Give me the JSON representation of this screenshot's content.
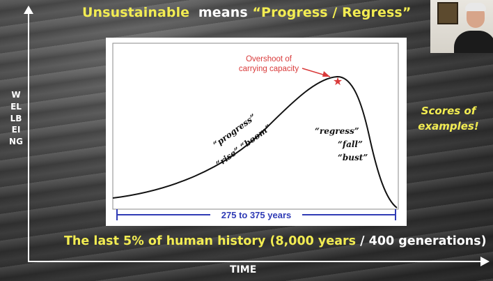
{
  "slide": {
    "title_part1": "Unsustainable",
    "title_part2": "means",
    "title_part3": "“Progress / Regress”",
    "y_axis_label": "WELLBEING",
    "x_axis_label": "TIME",
    "side_note": "Scores of examples!",
    "bottom_caption_part1": "The last 5% of human history (8,000 years",
    "bottom_caption_part2": "/ 400 generations)"
  },
  "chart": {
    "annotation": "Overshoot of carrying capacity",
    "annotation_line1": "Overshoot of",
    "annotation_line2": "carrying capacity",
    "rise_label_1": "“progress”",
    "rise_label_2": "“rise” “boom”",
    "fall_label_1": "“regress”",
    "fall_label_2": "“fall”",
    "fall_label_3": "“bust”",
    "span_label": "275 to 375 years",
    "colors": {
      "curve": "#111111",
      "annotation": "#d93a3a",
      "span": "#2f3bb5"
    }
  },
  "colors": {
    "title_highlight": "#f2ec52",
    "text": "#ffffff",
    "side_note": "#f2ec52"
  },
  "webcam": {
    "alt": "presenter webcam"
  }
}
